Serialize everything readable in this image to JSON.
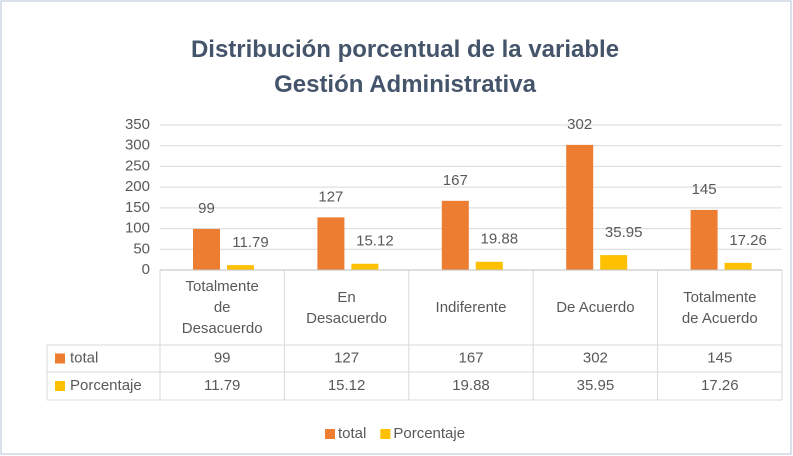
{
  "chart_data": {
    "type": "bar",
    "title": "Distribución porcentual de la variable Gestión Administrativa",
    "categories": [
      "Totalmente de Desacuerdo",
      "En Desacuerdo",
      "Indiferente",
      "De Acuerdo",
      "Totalmente de Acuerdo"
    ],
    "series": [
      {
        "name": "total",
        "color": "#ed7d31",
        "values": [
          99,
          127,
          167,
          302,
          145
        ]
      },
      {
        "name": "Porcentaje",
        "color": "#ffc000",
        "values": [
          11.79,
          15.12,
          19.88,
          35.95,
          17.26
        ]
      }
    ],
    "ylim": [
      0,
      350
    ],
    "yticks": [
      0,
      50,
      100,
      150,
      200,
      250,
      300,
      350
    ],
    "grid": true,
    "legend": "bottom",
    "data_table": true
  }
}
